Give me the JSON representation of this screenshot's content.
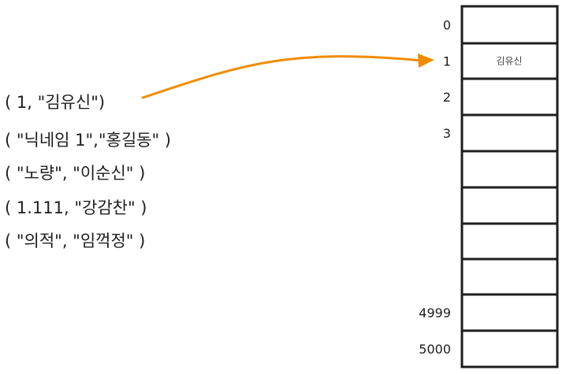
{
  "tuples": [
    "( 1, \"김유신\")",
    "( \"닉네임 1\",\"홍길동\" )",
    "( \"노량\", \"이순신\" )",
    "( 1.111, \"강감찬\" )",
    "( \"의적\", \"임꺽정\" )"
  ],
  "array": {
    "index_labels": [
      "0",
      "1",
      "2",
      "3",
      "",
      "",
      "",
      "",
      "4999",
      "5000"
    ],
    "cell_values": [
      "",
      "김유신",
      "",
      "",
      "",
      "",
      "",
      "",
      "",
      ""
    ]
  },
  "arrow": {
    "from": "( 1, \"김유신\")",
    "to": "1",
    "color": "#f08c00"
  }
}
